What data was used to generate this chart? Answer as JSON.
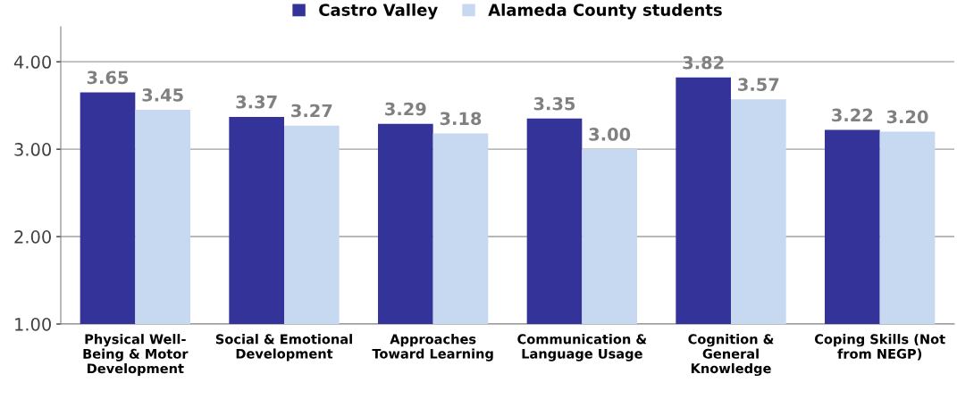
{
  "chart_data": {
    "type": "bar",
    "categories": [
      "Physical Well-\nBeing & Motor\nDevelopment",
      "Social & Emotional\nDevelopment",
      "Approaches\nToward Learning",
      "Communication &\nLanguage Usage",
      "Cognition &\nGeneral\nKnowledge",
      "Coping Skills (Not\nfrom NEGP)"
    ],
    "series": [
      {
        "name": "Castro Valley",
        "color": "#333399",
        "values": [
          3.65,
          3.37,
          3.29,
          3.35,
          3.82,
          3.22
        ],
        "value_labels": [
          "3.65",
          "3.37",
          "3.29",
          "3.35",
          "3.82",
          "3.22"
        ]
      },
      {
        "name": "Alameda County students",
        "color": "#c6d9f1",
        "values": [
          3.45,
          3.27,
          3.18,
          3.0,
          3.57,
          3.2
        ],
        "value_labels": [
          "3.45",
          "3.27",
          "3.18",
          "3.00",
          "3.57",
          "3.20"
        ]
      }
    ],
    "ylim": [
      1,
      4.4
    ],
    "yticks": [
      {
        "value": 1,
        "label": "1.00"
      },
      {
        "value": 2,
        "label": "2.00"
      },
      {
        "value": 3,
        "label": "3.00"
      },
      {
        "value": 4,
        "label": "4.00"
      }
    ],
    "grid": "y",
    "legend": "top"
  }
}
